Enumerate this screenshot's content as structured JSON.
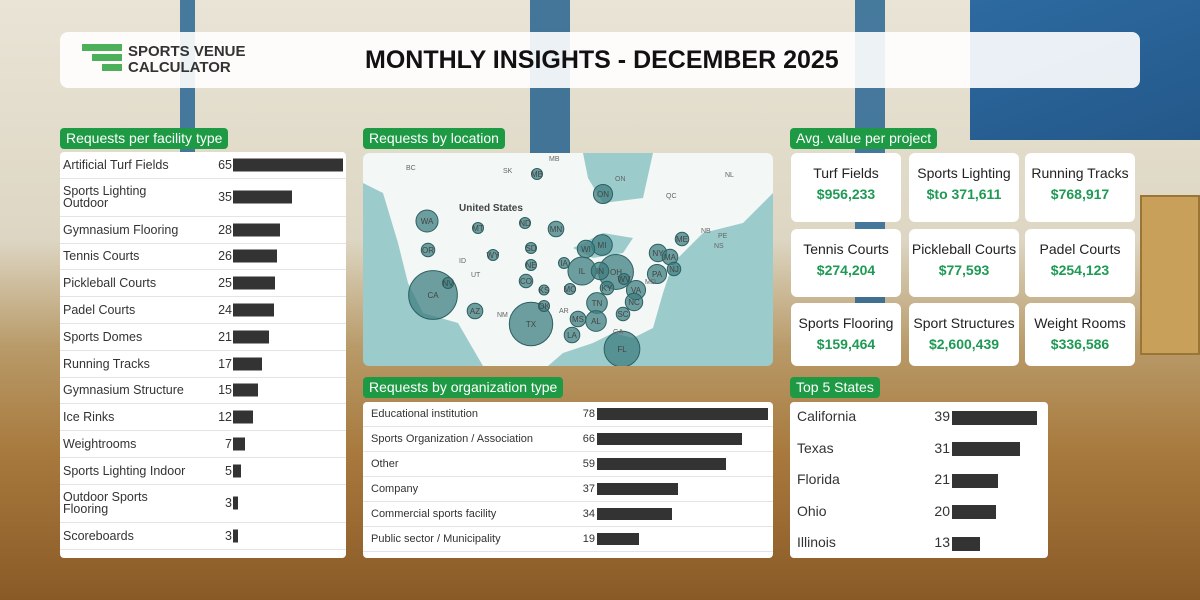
{
  "header": {
    "logo_line1": "SPORTS VENUE",
    "logo_line2": "CALCULATOR",
    "title": "MONTHLY INSIGHTS - DECEMBER 2025"
  },
  "facility": {
    "title": "Requests per facility type",
    "items": [
      {
        "label": "Artificial Turf Fields",
        "value": 65
      },
      {
        "label": "Sports Lighting Outdoor",
        "value": 35
      },
      {
        "label": "Gymnasium Flooring",
        "value": 28
      },
      {
        "label": "Tennis Courts",
        "value": 26
      },
      {
        "label": "Pickleball Courts",
        "value": 25
      },
      {
        "label": "Padel Courts",
        "value": 24
      },
      {
        "label": "Sports Domes",
        "value": 21
      },
      {
        "label": "Running Tracks",
        "value": 17
      },
      {
        "label": "Gymnasium Structure",
        "value": 15
      },
      {
        "label": "Ice Rinks",
        "value": 12
      },
      {
        "label": "Weightrooms",
        "value": 7
      },
      {
        "label": "Sports Lighting Indoor",
        "value": 5
      },
      {
        "label": "Outdoor Sports Flooring",
        "value": 3
      },
      {
        "label": "Scoreboards",
        "value": 3
      }
    ]
  },
  "location": {
    "title": "Requests by location",
    "country_label": "United States",
    "region_labels": [
      "BC",
      "SK",
      "MB",
      "ON",
      "QC",
      "NL",
      "NB",
      "PE",
      "NS",
      "ID",
      "UT",
      "NM",
      "AR",
      "GA",
      "MD"
    ],
    "bubbles": [
      {
        "label": "CA",
        "value": 39
      },
      {
        "label": "TX",
        "value": 31
      },
      {
        "label": "FL",
        "value": 21
      },
      {
        "label": "OH",
        "value": 20
      },
      {
        "label": "IL",
        "value": 13
      },
      {
        "label": "WA",
        "value": 8
      },
      {
        "label": "ON",
        "value": 6
      },
      {
        "label": "MI",
        "value": 7
      },
      {
        "label": "WI",
        "value": 5
      },
      {
        "label": "NY",
        "value": 5
      },
      {
        "label": "PA",
        "value": 6
      },
      {
        "label": "VA",
        "value": 6
      },
      {
        "label": "NC",
        "value": 5
      },
      {
        "label": "TN",
        "value": 7
      },
      {
        "label": "AL",
        "value": 7
      },
      {
        "label": "MN",
        "value": 4
      },
      {
        "label": "CO",
        "value": 3
      },
      {
        "label": "AZ",
        "value": 4
      },
      {
        "label": "LA",
        "value": 4
      },
      {
        "label": "MS",
        "value": 4
      },
      {
        "label": "SC",
        "value": 3
      },
      {
        "label": "IN",
        "value": 5
      },
      {
        "label": "KY",
        "value": 3
      },
      {
        "label": "OR",
        "value": 3
      },
      {
        "label": "MT",
        "value": 2
      },
      {
        "label": "ND",
        "value": 2
      },
      {
        "label": "SD",
        "value": 2
      },
      {
        "label": "NE",
        "value": 2
      },
      {
        "label": "WY",
        "value": 2
      },
      {
        "label": "NV",
        "value": 2
      },
      {
        "label": "MO",
        "value": 2
      },
      {
        "label": "IA",
        "value": 2
      },
      {
        "label": "ME",
        "value": 3
      },
      {
        "label": "MA",
        "value": 4
      },
      {
        "label": "NJ",
        "value": 3
      },
      {
        "label": "MB",
        "value": 2
      },
      {
        "label": "OK",
        "value": 2
      },
      {
        "label": "KS",
        "value": 1
      },
      {
        "label": "WV",
        "value": 2
      }
    ]
  },
  "org": {
    "title": "Requests by organization type",
    "items": [
      {
        "label": "Educational institution",
        "value": 78
      },
      {
        "label": "Sports Organization / Association",
        "value": 66
      },
      {
        "label": "Other",
        "value": 59
      },
      {
        "label": "Company",
        "value": 37
      },
      {
        "label": "Commercial sports facility",
        "value": 34
      },
      {
        "label": "Public sector / Municipality",
        "value": 19
      }
    ]
  },
  "avg": {
    "title": "Avg. value per project",
    "items": [
      {
        "name": "Turf Fields",
        "value": "$956,233"
      },
      {
        "name": "Sports Lighting",
        "value": "$to 371,611"
      },
      {
        "name": "Running Tracks",
        "value": "$768,917"
      },
      {
        "name": "Tennis Courts",
        "value": "$274,204"
      },
      {
        "name": "Pickleball Courts",
        "value": "$77,593"
      },
      {
        "name": "Padel Courts",
        "value": "$254,123"
      },
      {
        "name": "Sports Flooring",
        "value": "$159,464"
      },
      {
        "name": "Sport Structures",
        "value": "$2,600,439"
      },
      {
        "name": "Weight Rooms",
        "value": "$336,586"
      }
    ]
  },
  "states": {
    "title": "Top 5 States",
    "items": [
      {
        "label": "California",
        "value": 39
      },
      {
        "label": "Texas",
        "value": 31
      },
      {
        "label": "Florida",
        "value": 21
      },
      {
        "label": "Ohio",
        "value": 20
      },
      {
        "label": "Illinois",
        "value": 13
      }
    ]
  },
  "colors": {
    "accent": "#1e9a45",
    "value_green": "#1e9a55",
    "bar": "#333333",
    "bubble": "#3f7f82"
  }
}
